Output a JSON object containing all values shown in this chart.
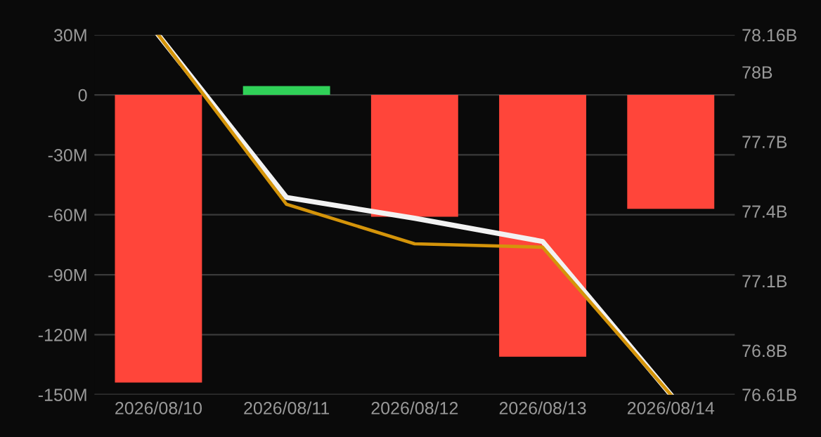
{
  "chart_data": {
    "type": "bar",
    "categories": [
      "2026/08/10",
      "2026/08/11",
      "2026/08/12",
      "2026/08/13",
      "2026/08/14"
    ],
    "series": [
      {
        "colors": [
          "#ff453a",
          "#30d158",
          "#ff453a",
          "#ff453a",
          "#ff453a"
        ],
        "values": [
          -144,
          4.4,
          -61,
          -131,
          -57
        ]
      },
      {
        "type": "line",
        "axis": "y2",
        "color": "#f2f2f2",
        "values": [
          78.16,
          77.46,
          77.37,
          77.27,
          76.61
        ]
      },
      {
        "type": "line",
        "axis": "y2",
        "color": "#d4940a",
        "values": [
          78.16,
          77.43,
          77.26,
          77.245,
          76.61
        ]
      }
    ],
    "ylim": [
      -150,
      30
    ],
    "yticks": [
      {
        "value": 30,
        "label": "30M"
      },
      0,
      {
        "value": -30,
        "label": "-30M"
      },
      {
        "value": -60,
        "label": "-60M"
      },
      {
        "value": -90,
        "label": "-90M"
      },
      {
        "value": -120,
        "label": "-120M"
      },
      {
        "value": -150,
        "label": "-150M"
      }
    ],
    "y2lim": [
      76.61,
      78.16
    ],
    "y2ticks": [
      {
        "value": 78.16,
        "label": "78.16B"
      },
      {
        "value": 78,
        "label": "78B"
      },
      {
        "value": 77.7,
        "label": "77.7B"
      },
      {
        "value": 77.4,
        "label": "77.4B"
      },
      {
        "value": 77.1,
        "label": "77.1B"
      },
      {
        "value": 76.8,
        "label": "76.8B"
      },
      {
        "value": 76.61,
        "label": "76.61B"
      }
    ],
    "grid": "y",
    "marker": "none",
    "line_style": "solid"
  }
}
